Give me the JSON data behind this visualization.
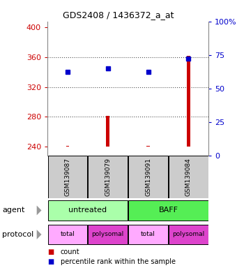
{
  "title": "GDS2408 / 1436372_a_at",
  "samples": [
    "GSM139087",
    "GSM139079",
    "GSM139091",
    "GSM139084"
  ],
  "bar_values": [
    241,
    281,
    241,
    362
  ],
  "bar_base": 240,
  "percentile_values": [
    340,
    345,
    340,
    358
  ],
  "ylim_left": [
    228,
    408
  ],
  "ylim_right": [
    0,
    100
  ],
  "yticks_left": [
    240,
    280,
    320,
    360,
    400
  ],
  "yticks_right": [
    0,
    25,
    50,
    75,
    100
  ],
  "bar_color": "#cc0000",
  "percentile_color": "#0000cc",
  "agent_data": [
    [
      0,
      2,
      "untreated",
      "#aaffaa"
    ],
    [
      2,
      4,
      "BAFF",
      "#55ee55"
    ]
  ],
  "proto_data": [
    [
      0,
      1,
      "total",
      "#ffaaff"
    ],
    [
      1,
      2,
      "polysomal",
      "#dd44cc"
    ],
    [
      2,
      3,
      "total",
      "#ffaaff"
    ],
    [
      3,
      4,
      "polysomal",
      "#dd44cc"
    ]
  ],
  "sample_bg_color": "#cccccc",
  "grid_color": "#555555",
  "left_label_color": "#cc0000",
  "right_label_color": "#0000cc",
  "legend_count_color": "#cc0000",
  "legend_pct_color": "#0000cc",
  "x_positions": [
    0.5,
    1.5,
    2.5,
    3.5
  ],
  "bar_width": 0.08,
  "xlim": [
    0,
    4
  ]
}
